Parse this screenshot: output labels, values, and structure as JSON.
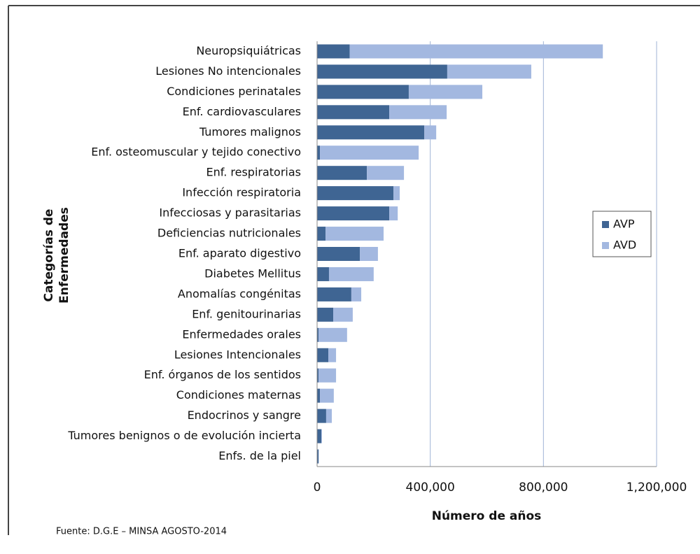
{
  "chart_data": {
    "type": "stacked_barh",
    "ylabel": [
      "Categorías de",
      "Enfermedades"
    ],
    "xlabel": "Número de años",
    "source": "Fuente: D.G.E – MINSA  AGOSTO-2014",
    "categories": [
      "Neuropsiquiátricas",
      "Lesiones No intencionales",
      "Condiciones perinatales",
      "Enf. cardiovasculares",
      "Tumores malignos",
      "Enf. osteomuscular y tejido conectivo",
      "Enf. respiratorias",
      "Infección respiratoria",
      "Infecciosas y parasitarias",
      "Deficiencias nutricionales",
      "Enf. aparato digestivo",
      "Diabetes Mellitus",
      "Anomalías congénitas",
      "Enf. genitourinarias",
      "Enfermedades orales",
      "Lesiones Intencionales",
      "Enf. órganos de los sentidos",
      "Condiciones maternas",
      "Endocrinos y sangre",
      "Tumores benignos o de evolución incierta",
      "Enfs. de la piel"
    ],
    "series": [
      {
        "name": "AVP",
        "color": "#3f6593",
        "values": [
          115000,
          460000,
          324000,
          255000,
          379000,
          10000,
          176000,
          270000,
          255000,
          30000,
          151000,
          42000,
          121000,
          57000,
          5000,
          40000,
          5000,
          10000,
          32000,
          15000,
          5000
        ]
      },
      {
        "name": "AVD",
        "color": "#a3b8e0",
        "values": [
          895000,
          297000,
          260000,
          203000,
          42000,
          349000,
          131000,
          22000,
          30000,
          205000,
          64000,
          158000,
          35000,
          69000,
          101000,
          27000,
          62000,
          49000,
          20000,
          2000,
          1000
        ]
      }
    ],
    "xlim": [
      0,
      1200000
    ],
    "xticks": [
      0,
      {
        "value": 400000,
        "label": "400,000"
      },
      {
        "value": 800000,
        "label": "800,000"
      },
      {
        "value": 1200000,
        "label": "1,200,000"
      }
    ],
    "grid": true,
    "legend": "right"
  }
}
